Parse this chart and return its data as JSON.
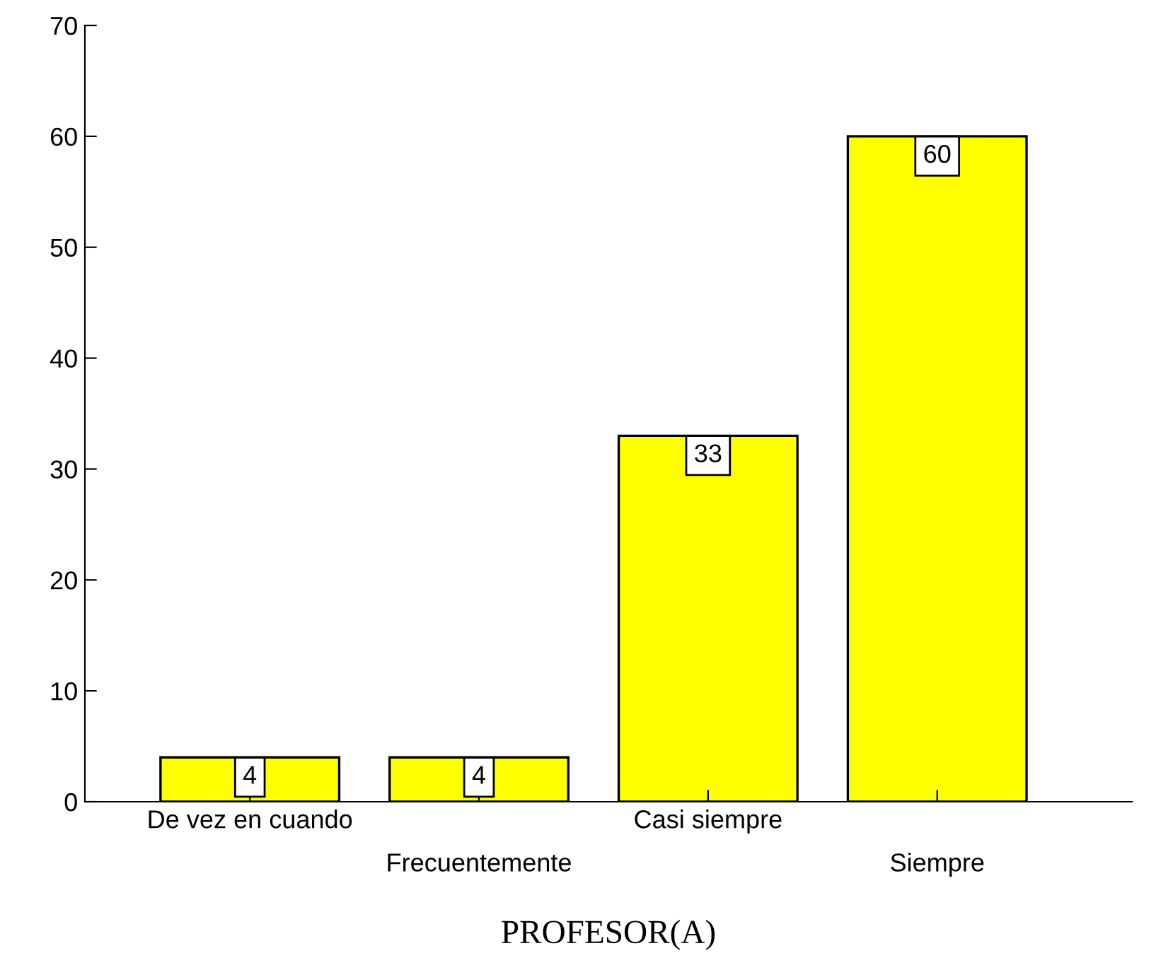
{
  "chart_data": {
    "type": "bar",
    "xlabel": "PROFESOR(A)",
    "categories": [
      "De vez en cuando",
      "Frecuentemente",
      "Casi siempre",
      "Siempre"
    ],
    "values": [
      4,
      4,
      33,
      60
    ],
    "color": "#ffff00",
    "ylim": [
      0,
      70
    ],
    "yticks": [
      0,
      10,
      20,
      30,
      40,
      50,
      60,
      70
    ],
    "data_labels": true,
    "grid": false,
    "legend": false
  }
}
